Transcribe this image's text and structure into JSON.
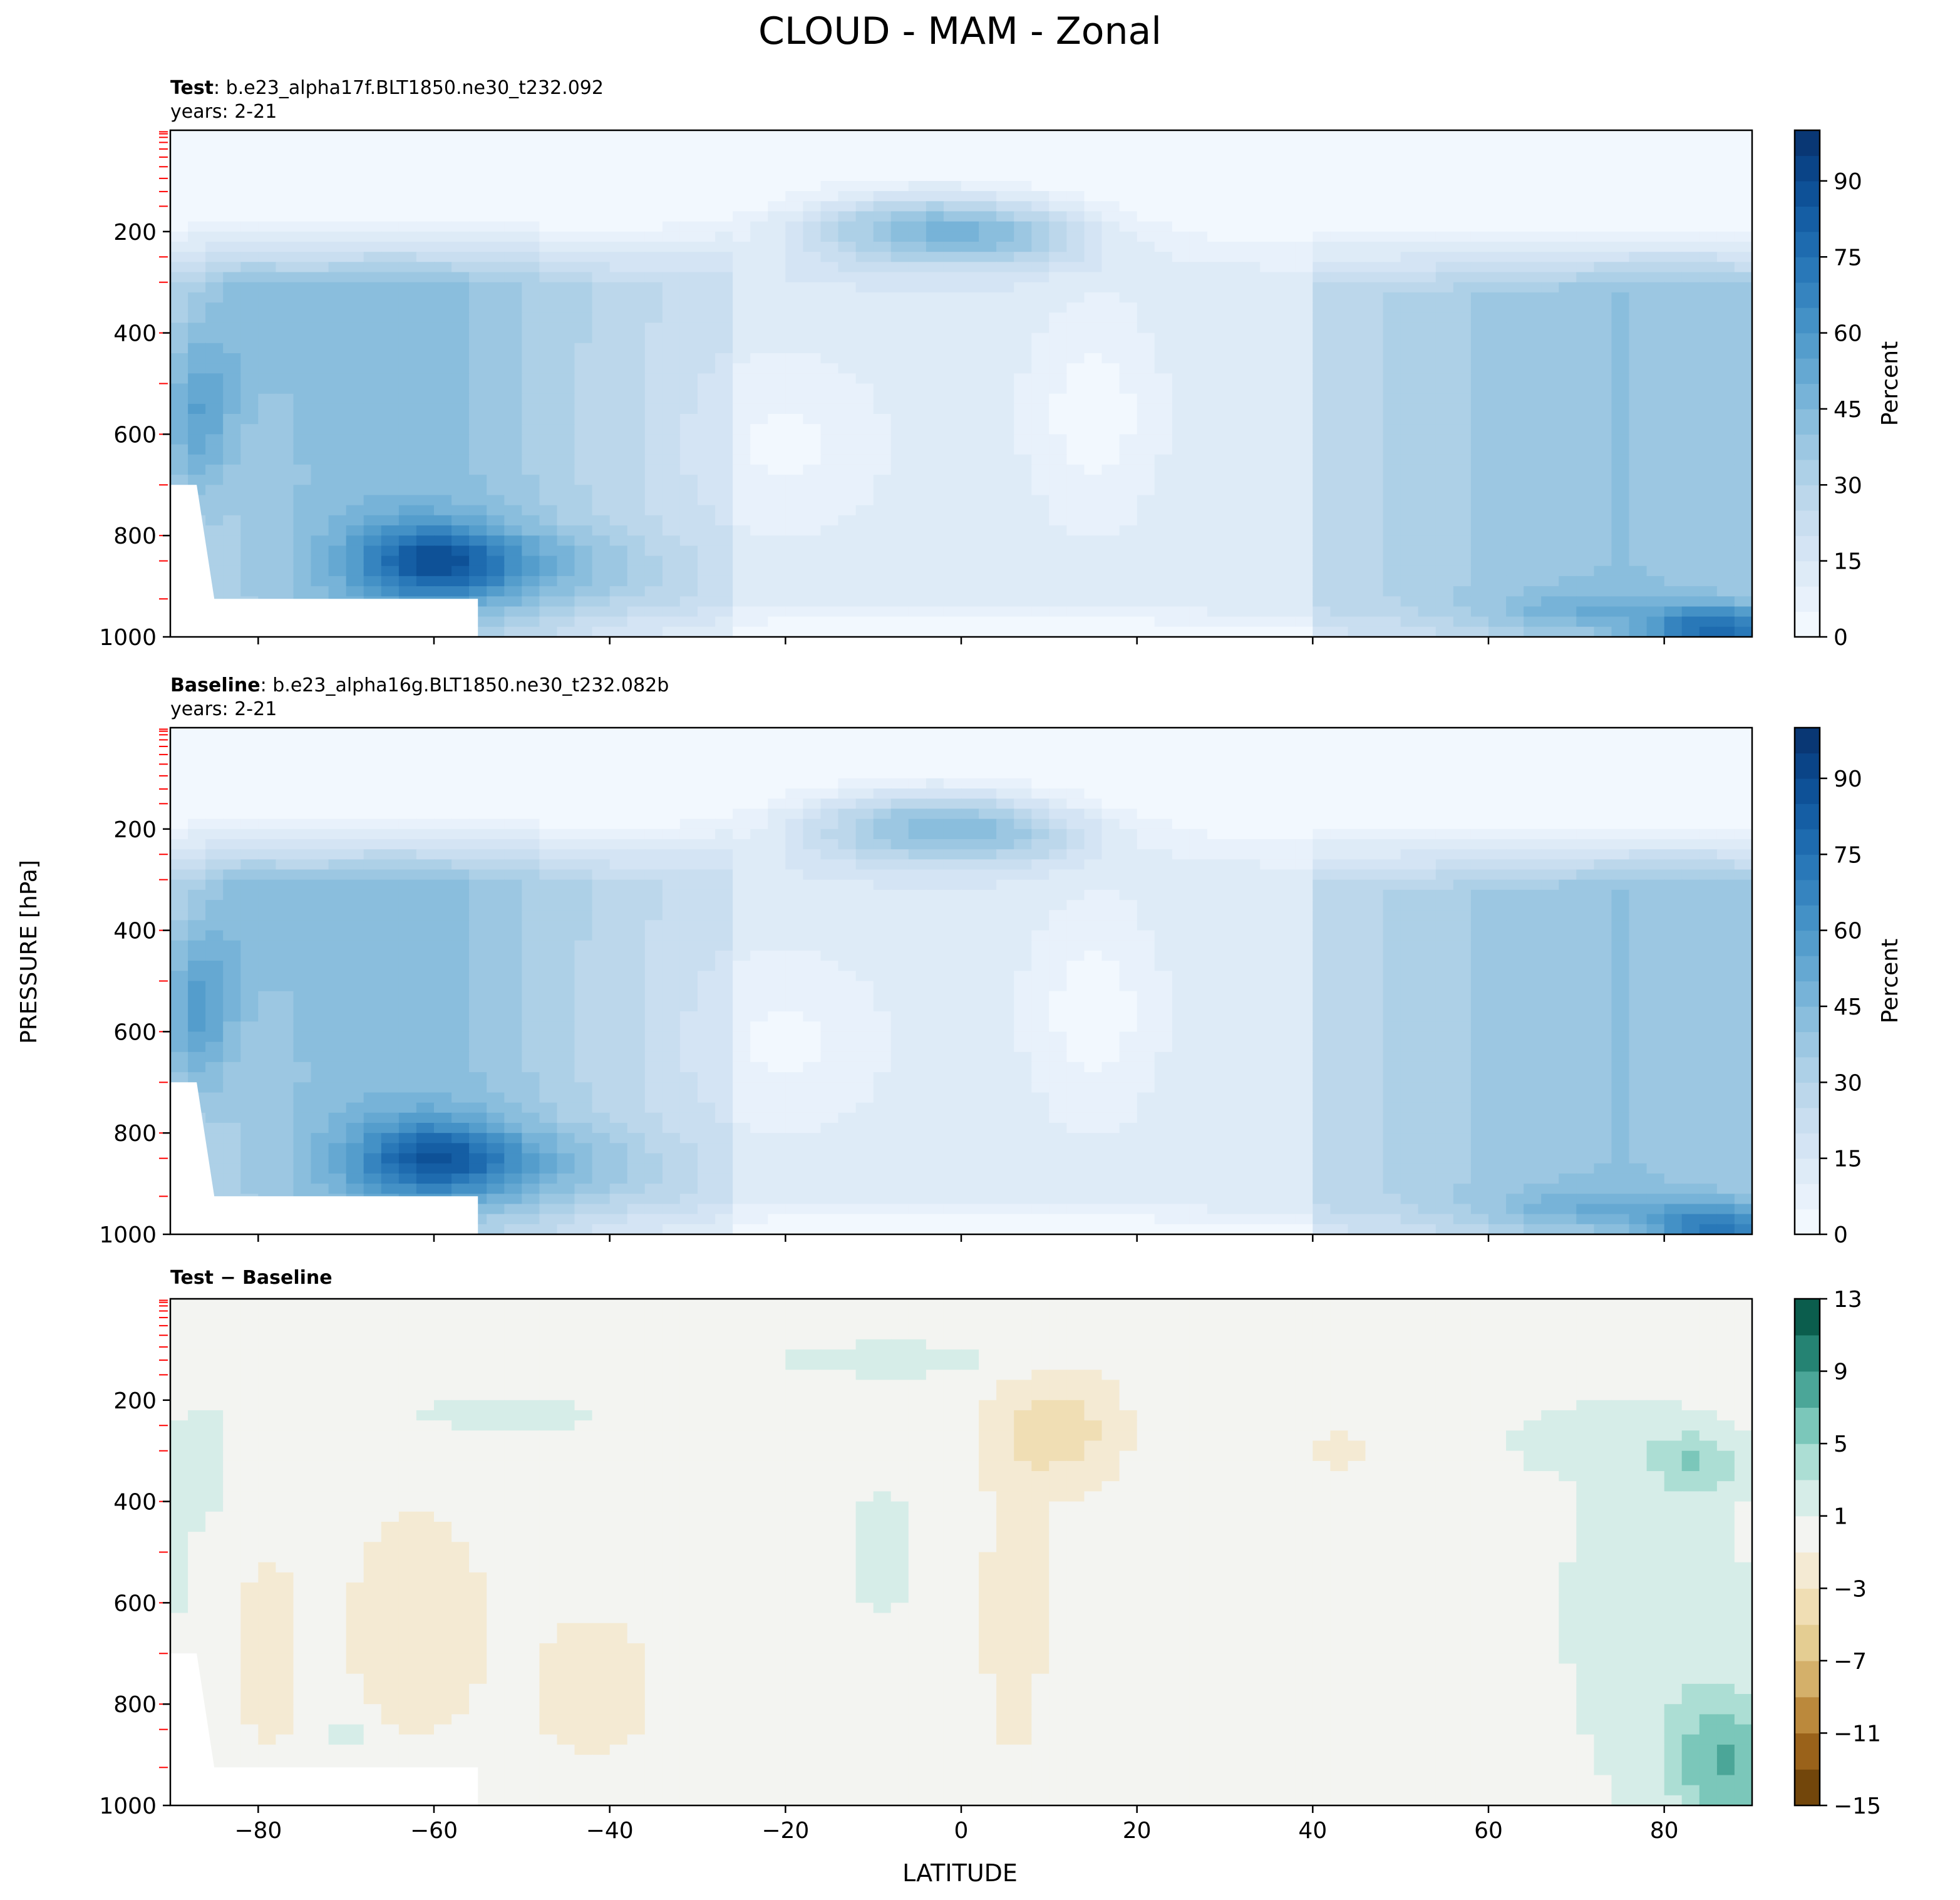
{
  "figure": {
    "title": "CLOUD - MAM - Zonal",
    "xlabel": "LATITUDE",
    "ylabel": "PRESSURE [hPa]"
  },
  "chart_data": [
    {
      "type": "heatmap",
      "panel": "test",
      "label_bold": "Test",
      "label_rest": ": b.e23_alpha17f.BLT1850.ne30_t232.092",
      "years": "years: 2-21",
      "x_ticks": [
        -80,
        -60,
        -40,
        -20,
        0,
        20,
        40,
        60,
        80
      ],
      "xlim": [
        -90,
        90
      ],
      "y_ticks": [
        200,
        400,
        600,
        800,
        1000
      ],
      "ylim": [
        1000,
        0
      ],
      "colorbar": {
        "label": "Percent",
        "ticks": [
          0,
          15,
          30,
          45,
          60,
          75,
          90
        ],
        "range": [
          0,
          100
        ],
        "levels": 20,
        "colors": [
          "#f7fbff",
          "#e3eef9",
          "#cfe1f2",
          "#b5d4e9",
          "#93c3df",
          "#6daed5",
          "#4b97c9",
          "#2f7ebc",
          "#1864aa",
          "#0a4a90",
          "#08306b"
        ]
      },
      "features": [
        {
          "lat": 7,
          "p": 210,
          "v": 44
        },
        {
          "lat": -5,
          "p": 170,
          "v": 42
        },
        {
          "lat": -15,
          "p": 180,
          "v": 24
        },
        {
          "lat": -60,
          "p": 850,
          "v": 82
        },
        {
          "lat": -63,
          "p": 650,
          "v": 58
        },
        {
          "lat": -82,
          "p": 400,
          "v": 50
        },
        {
          "lat": -87,
          "p": 600,
          "v": 60
        },
        {
          "lat": -72,
          "p": 420,
          "v": 46
        },
        {
          "lat": -42,
          "p": 850,
          "v": 38
        },
        {
          "lat": -45,
          "p": 450,
          "v": 26
        },
        {
          "lat": -20,
          "p": 650,
          "v": 5
        },
        {
          "lat": -15,
          "p": 850,
          "v": 15
        },
        {
          "lat": 15,
          "p": 550,
          "v": 4
        },
        {
          "lat": 0,
          "p": 870,
          "v": 12
        },
        {
          "lat": 37,
          "p": 500,
          "v": 22
        },
        {
          "lat": 50,
          "p": 300,
          "v": 32
        },
        {
          "lat": 65,
          "p": 400,
          "v": 40
        },
        {
          "lat": 82,
          "p": 400,
          "v": 42
        },
        {
          "lat": 72,
          "p": 700,
          "v": 30
        },
        {
          "lat": 85,
          "p": 980,
          "v": 74
        },
        {
          "lat": 75,
          "p": 950,
          "v": 52
        },
        {
          "lat": 60,
          "p": 850,
          "v": 40
        }
      ]
    },
    {
      "type": "heatmap",
      "panel": "baseline",
      "label_bold": "Baseline",
      "label_rest": ": b.e23_alpha16g.BLT1850.ne30_t232.082b",
      "years": "years: 2-21",
      "x_ticks": [
        -80,
        -60,
        -40,
        -20,
        0,
        20,
        40,
        60,
        80
      ],
      "xlim": [
        -90,
        90
      ],
      "y_ticks": [
        200,
        400,
        600,
        800,
        1000
      ],
      "ylim": [
        1000,
        0
      ],
      "colorbar": {
        "label": "Percent",
        "ticks": [
          0,
          15,
          30,
          45,
          60,
          75,
          90
        ],
        "range": [
          0,
          100
        ],
        "levels": 20,
        "colors": [
          "#f7fbff",
          "#e3eef9",
          "#cfe1f2",
          "#b5d4e9",
          "#93c3df",
          "#6daed5",
          "#4b97c9",
          "#2f7ebc",
          "#1864aa",
          "#0a4a90",
          "#08306b"
        ]
      },
      "features": [
        {
          "lat": 7,
          "p": 210,
          "v": 42
        },
        {
          "lat": -5,
          "p": 170,
          "v": 40
        },
        {
          "lat": -15,
          "p": 180,
          "v": 23
        },
        {
          "lat": -60,
          "p": 850,
          "v": 80
        },
        {
          "lat": -63,
          "p": 650,
          "v": 58
        },
        {
          "lat": -82,
          "p": 400,
          "v": 54
        },
        {
          "lat": -87,
          "p": 600,
          "v": 62
        },
        {
          "lat": -72,
          "p": 420,
          "v": 46
        },
        {
          "lat": -42,
          "p": 850,
          "v": 36
        },
        {
          "lat": -45,
          "p": 450,
          "v": 25
        },
        {
          "lat": -20,
          "p": 650,
          "v": 5
        },
        {
          "lat": -15,
          "p": 850,
          "v": 15
        },
        {
          "lat": 15,
          "p": 550,
          "v": 4
        },
        {
          "lat": 0,
          "p": 870,
          "v": 12
        },
        {
          "lat": 37,
          "p": 500,
          "v": 22
        },
        {
          "lat": 50,
          "p": 300,
          "v": 33
        },
        {
          "lat": 65,
          "p": 400,
          "v": 41
        },
        {
          "lat": 82,
          "p": 400,
          "v": 40
        },
        {
          "lat": 72,
          "p": 700,
          "v": 32
        },
        {
          "lat": 85,
          "p": 980,
          "v": 68
        },
        {
          "lat": 75,
          "p": 950,
          "v": 52
        },
        {
          "lat": 60,
          "p": 850,
          "v": 40
        }
      ]
    },
    {
      "type": "heatmap",
      "panel": "difference",
      "label_bold": "Test − Baseline",
      "label_rest": "",
      "years": "",
      "x_ticks": [
        -80,
        -60,
        -40,
        -20,
        0,
        20,
        40,
        60,
        80
      ],
      "xlim": [
        -90,
        90
      ],
      "y_ticks": [
        200,
        400,
        600,
        800,
        1000
      ],
      "ylim": [
        1000,
        0
      ],
      "colorbar": {
        "label": "",
        "ticks": [
          -15,
          -11,
          -7,
          -3,
          1,
          5,
          9,
          13
        ],
        "range": [
          -15,
          13
        ],
        "levels": 14,
        "colors": [
          "#5e3b07",
          "#8a520f",
          "#b27a2c",
          "#cfa85e",
          "#e2c98c",
          "#efddb0",
          "#f4ead2",
          "#f3f4f2",
          "#d3ece7",
          "#a3dbd0",
          "#6ec0b2",
          "#3a998b",
          "#177464",
          "#00493a"
        ]
      },
      "features": [
        {
          "lat": -62,
          "p": 650,
          "v": -2.5
        },
        {
          "lat": -42,
          "p": 850,
          "v": -3.5
        },
        {
          "lat": -78,
          "p": 700,
          "v": -2.2
        },
        {
          "lat": 12,
          "p": 250,
          "v": -4.2
        },
        {
          "lat": 8,
          "p": 500,
          "v": -2.2
        },
        {
          "lat": 43,
          "p": 300,
          "v": -2
        },
        {
          "lat": 86,
          "p": 920,
          "v": 6.5
        },
        {
          "lat": 84,
          "p": 300,
          "v": 5
        },
        {
          "lat": 75,
          "p": 700,
          "v": 2.5
        },
        {
          "lat": 70,
          "p": 300,
          "v": 2.2
        },
        {
          "lat": -3,
          "p": 120,
          "v": 2.2
        },
        {
          "lat": -8,
          "p": 500,
          "v": 2.2
        },
        {
          "lat": -50,
          "p": 230,
          "v": 2
        },
        {
          "lat": -85,
          "p": 300,
          "v": 2
        },
        {
          "lat": -70,
          "p": 850,
          "v": 2
        }
      ]
    }
  ]
}
